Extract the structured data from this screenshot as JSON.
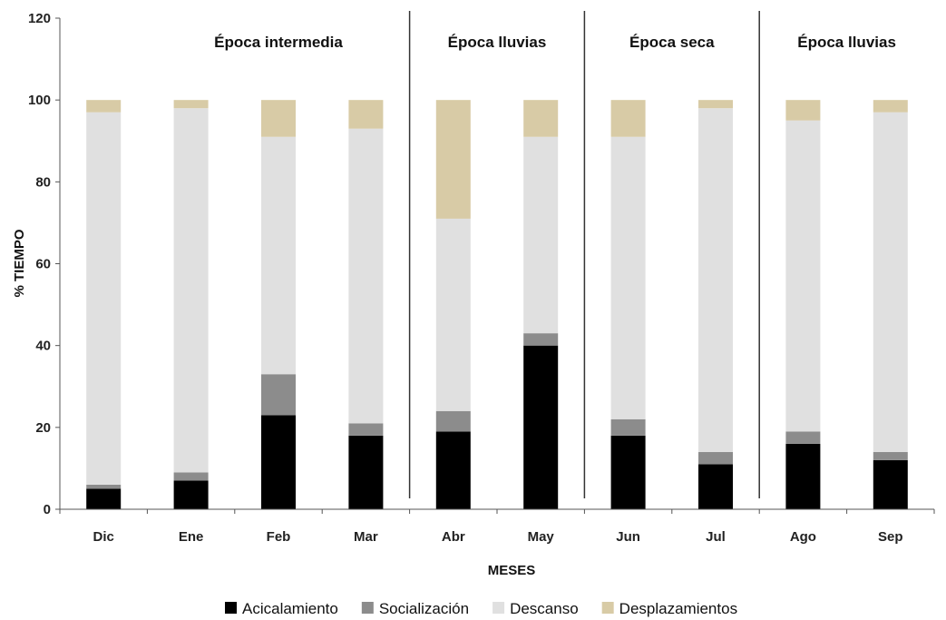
{
  "chart_data": {
    "type": "bar",
    "stacked": true,
    "xlabel": "MESES",
    "ylabel": "% TIEMPO",
    "ylim": [
      0,
      120
    ],
    "yticks": [
      0,
      20,
      40,
      60,
      80,
      100,
      120
    ],
    "grid": false,
    "legend_position": "bottom",
    "categories": [
      "Dic",
      "Ene",
      "Feb",
      "Mar",
      "Abr",
      "May",
      "Jun",
      "Jul",
      "Ago",
      "Sep"
    ],
    "series": [
      {
        "name": "Acicalamiento",
        "color": "#000000",
        "values": [
          5,
          7,
          23,
          18,
          19,
          40,
          18,
          11,
          16,
          12
        ]
      },
      {
        "name": "Socialización",
        "color": "#8c8c8c",
        "values": [
          1,
          2,
          10,
          3,
          5,
          3,
          4,
          3,
          3,
          2
        ]
      },
      {
        "name": "Descanso",
        "color": "#e0e0e0",
        "values": [
          91,
          89,
          58,
          72,
          47,
          48,
          69,
          84,
          76,
          83
        ]
      },
      {
        "name": "Desplazamientos",
        "color": "#d8cba6",
        "values": [
          3,
          2,
          9,
          7,
          29,
          9,
          9,
          2,
          5,
          3
        ]
      }
    ],
    "season_groups": [
      {
        "label": "Época intermedia",
        "categories": [
          "Dic",
          "Ene",
          "Feb",
          "Mar"
        ]
      },
      {
        "label": "Época lluvias",
        "categories": [
          "Abr",
          "May"
        ]
      },
      {
        "label": "Época seca",
        "categories": [
          "Jun",
          "Jul"
        ]
      },
      {
        "label": "Época lluvias",
        "categories": [
          "Ago",
          "Sep"
        ]
      }
    ]
  }
}
